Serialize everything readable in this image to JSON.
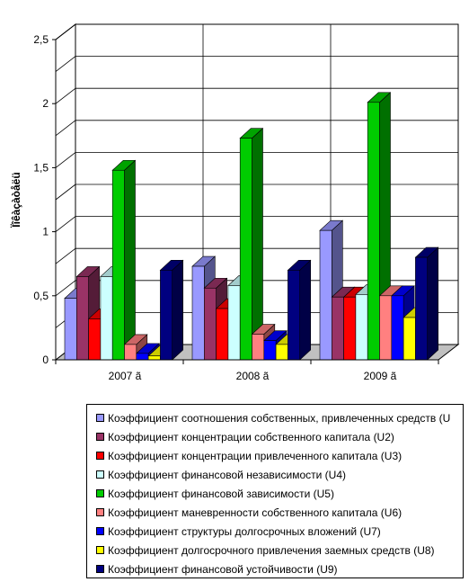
{
  "chart_data": {
    "type": "bar",
    "categories": [
      "2007 ã",
      "2008 ã",
      "2009 ã"
    ],
    "ylabel": "Ïîêàçàòåëü",
    "ylim": [
      0,
      2.5
    ],
    "yticks": [
      "0",
      "0,5",
      "1",
      "1,5",
      "2",
      "2,5"
    ],
    "grid": true,
    "legend_position": "bottom",
    "series": [
      {
        "name": "Коэффициент соотношения собственных, привлеченных средств (U",
        "color": "#9999ff",
        "values": [
          0.48,
          0.73,
          1.01
        ]
      },
      {
        "name": "Коэффициент концентрации собственного капитала (U2)",
        "color": "#993366",
        "values": [
          0.65,
          0.56,
          0.49
        ]
      },
      {
        "name": "Коэффициент концентрации привлеченного капитала (U3)",
        "color": "#ff0000",
        "values": [
          0.32,
          0.4,
          0.49
        ]
      },
      {
        "name": "Коэффициент финансовой независимости (U4)",
        "color": "#ccffff",
        "values": [
          0.65,
          0.58,
          0.51
        ]
      },
      {
        "name": "Коэффициент финансовой зависимости (U5)",
        "color": "#00cc00",
        "values": [
          1.48,
          1.73,
          2.01
        ]
      },
      {
        "name": "Коэффициент маневренности собственного капитала (U6)",
        "color": "#ff8080",
        "values": [
          0.12,
          0.2,
          0.5
        ]
      },
      {
        "name": "Коэффициент структуры долгосрочных вложений (U7)",
        "color": "#0000ff",
        "values": [
          0.05,
          0.15,
          0.5
        ]
      },
      {
        "name": "Коэффициент долгосрочного привлечения заемных средств (U8)",
        "color": "#ffff00",
        "values": [
          0.03,
          0.12,
          0.33
        ]
      },
      {
        "name": "Коэффициент финансовой устойчивости (U9)",
        "color": "#000080",
        "values": [
          0.7,
          0.7,
          0.8
        ]
      }
    ]
  }
}
